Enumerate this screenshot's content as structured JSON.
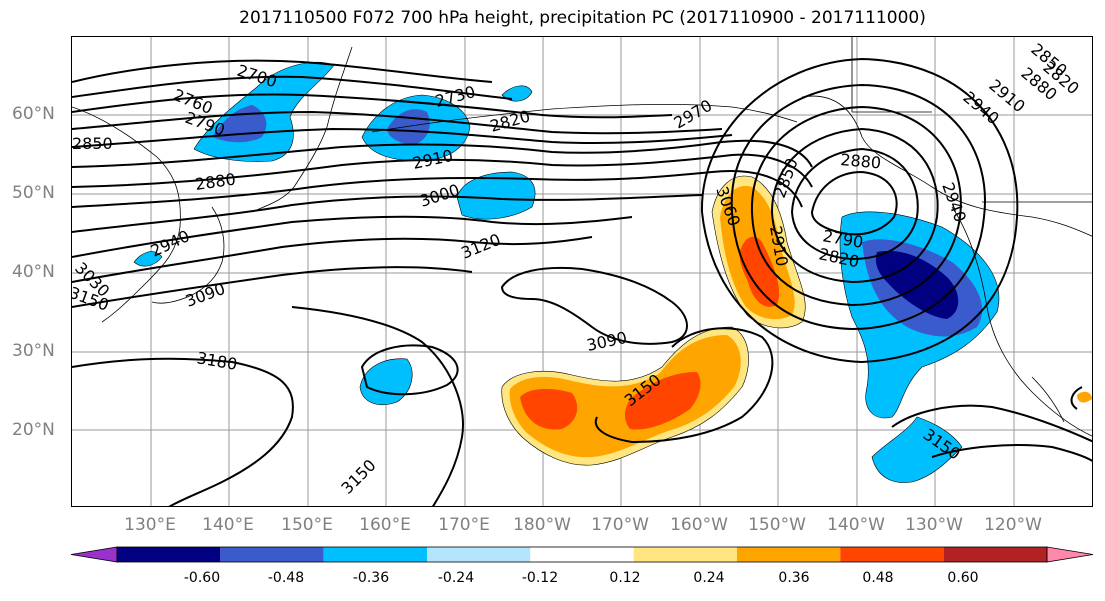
{
  "title": "2017110500 F072 700 hPa height, precipitation PC (2017110900 - 2017111000)",
  "longitude_labels": [
    "130°E",
    "140°E",
    "150°E",
    "160°E",
    "170°E",
    "180°W",
    "170°W",
    "160°W",
    "150°W",
    "140°W",
    "130°W",
    "120°W"
  ],
  "latitude_labels": [
    "60°N",
    "50°N",
    "40°N",
    "30°N",
    "20°N"
  ],
  "contour_labels": [
    "2700",
    "2760",
    "2790",
    "2730",
    "2820",
    "2970",
    "2850",
    "2880",
    "2910",
    "3000",
    "3120",
    "2940",
    "3030",
    "3090",
    "3060",
    "3180",
    "3150",
    "2850",
    "2910",
    "2790",
    "2820",
    "2880",
    "2940",
    "2850",
    "2820",
    "2880",
    "2910",
    "2940",
    "3090",
    "3150",
    "3150",
    "3150"
  ],
  "colorbar": {
    "ticks": [
      "-0.60",
      "-0.48",
      "-0.36",
      "-0.24",
      "-0.12",
      "0.12",
      "0.24",
      "0.36",
      "0.48",
      "0.60"
    ],
    "colors": [
      "#9932cc",
      "#000080",
      "#3a5bcc",
      "#00bfff",
      "#b3e5fc",
      "#ffffff",
      "#ffe680",
      "#ffa500",
      "#ff4500",
      "#b22222",
      "#ff88aa"
    ]
  }
}
